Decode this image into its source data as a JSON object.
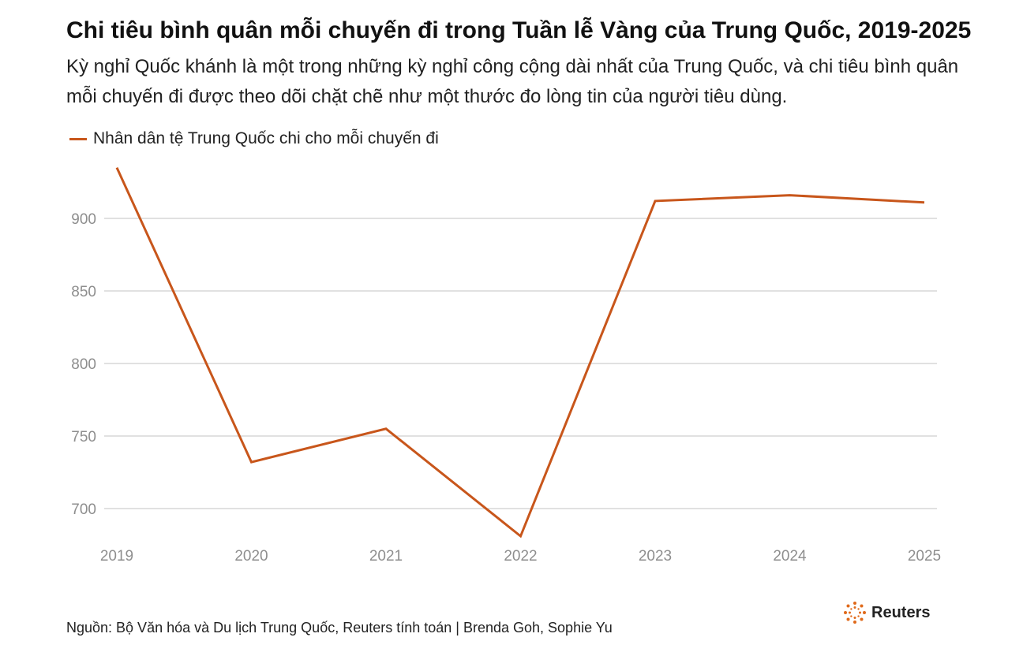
{
  "title": "Chi tiêu bình quân mỗi chuyến đi trong Tuần lễ Vàng của Trung Quốc, 2019-2025",
  "subtitle": "Kỳ nghỉ Quốc khánh là một trong những kỳ nghỉ công cộng dài nhất của Trung Quốc, và chi tiêu bình quân mỗi chuyến đi được theo dõi chặt chẽ như một thước đo lòng tin của người tiêu dùng.",
  "source": "Nguồn: Bộ Văn hóa và Du lịch Trung Quốc, Reuters tính toán | Brenda Goh, Sophie Yu",
  "brand": {
    "name": "Reuters",
    "icon": "reuters-logo-icon"
  },
  "colors": {
    "line": "#c8561b",
    "grid": "#cfcfcf",
    "tick": "#8e8e8e"
  },
  "chart_data": {
    "type": "line",
    "x": [
      "2019",
      "2020",
      "2021",
      "2022",
      "2023",
      "2024",
      "2025"
    ],
    "series": [
      {
        "name": "Nhân dân tệ Trung Quốc chi cho mỗi chuyến đi",
        "values": [
          935,
          732,
          755,
          681,
          912,
          916,
          911
        ]
      }
    ],
    "yticks": [
      700,
      750,
      800,
      850,
      900
    ],
    "ylim": [
      680,
      940
    ],
    "grid": true,
    "legend": "top-left"
  }
}
